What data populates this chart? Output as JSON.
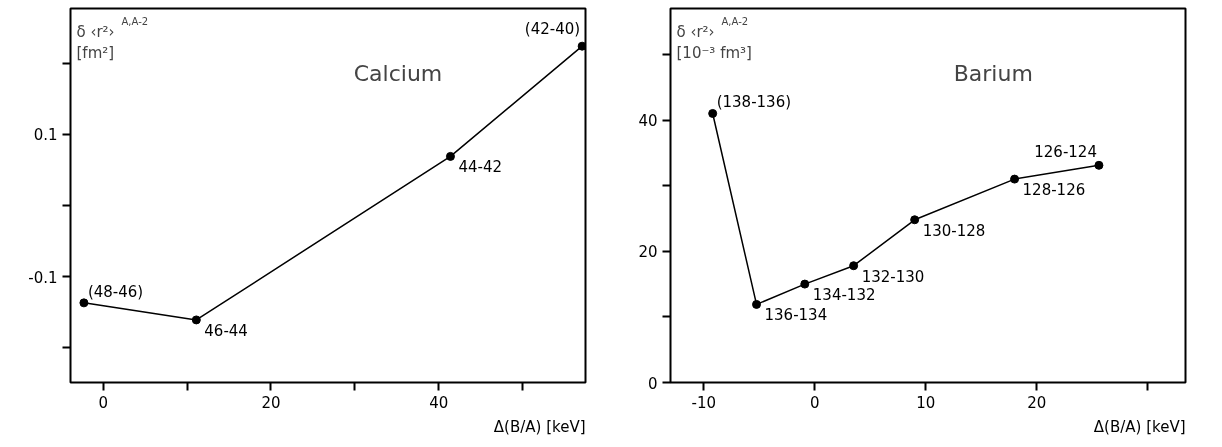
{
  "chart_data": [
    {
      "type": "line",
      "title": "Calcium",
      "ylabel": "δ ‹r²›$^{A,A-2}$\n[fm²]",
      "xlabel": "Δ(B/A) [keV]",
      "x": [
        -2.3,
        11.1,
        41.4,
        57.1
      ],
      "series": [
        {
          "color": "#000000",
          "values": [
            -0.137,
            -0.161,
            0.069,
            0.224
          ]
        }
      ],
      "annotations": [
        {
          "text": "(48-46)",
          "x": -2.3,
          "y": -0.137
        },
        {
          "text": "46-44",
          "x": 11.1,
          "y": -0.161
        },
        {
          "text": "44-42",
          "x": 41.4,
          "y": 0.069
        },
        {
          "text": "(42-40)",
          "x": 57.1,
          "y": 0.224
        }
      ],
      "xlim": [
        -3.9,
        57.5
      ],
      "ylim": [
        -0.249,
        0.277
      ],
      "xticks": [
        0,
        {
          "value": 10,
          "label": null
        },
        20,
        {
          "value": 30,
          "label": null
        },
        40,
        {
          "value": 50,
          "label": null
        }
      ],
      "yticks": [
        {
          "value": -0.2,
          "label": null
        },
        -0.1,
        {
          "value": 0,
          "label": null
        },
        0.1,
        {
          "value": 0.2,
          "label": null
        }
      ],
      "marker": "circle",
      "line_style": "solid",
      "grid": false
    },
    {
      "type": "line",
      "title": "Barium",
      "ylabel": "δ ‹r²›$^{A,A-2}$\n[10⁻³ fm³]",
      "xlabel": "Δ(B/A) [keV]",
      "x": [
        -9.2,
        -5.25,
        -0.9,
        3.5,
        9.0,
        18.0,
        25.6
      ],
      "series": [
        {
          "color": "#000000",
          "values": [
            41.0,
            11.9,
            15.0,
            17.8,
            24.8,
            31.0,
            33.1
          ]
        }
      ],
      "annotations": [
        {
          "text": "(138-136)",
          "x": -9.2,
          "y": 41.0
        },
        {
          "text": "136-134",
          "x": -5.25,
          "y": 11.9
        },
        {
          "text": "134-132",
          "x": -0.9,
          "y": 15.0
        },
        {
          "text": "132-130",
          "x": 3.5,
          "y": 17.8
        },
        {
          "text": "130-128",
          "x": 9.0,
          "y": 24.8
        },
        {
          "text": "128-126",
          "x": 18.0,
          "y": 31.0
        },
        {
          "text": "126-124",
          "x": 25.6,
          "y": 33.1
        }
      ],
      "xlim": [
        -13,
        33.4
      ],
      "ylim": [
        0,
        57
      ],
      "xticks": [
        -10,
        0,
        10,
        20,
        {
          "value": 30,
          "label": null
        }
      ],
      "yticks": [
        0,
        {
          "value": 10,
          "label": null
        },
        20,
        {
          "value": 30,
          "label": null
        },
        40,
        {
          "value": 50,
          "label": null
        }
      ],
      "marker": "circle",
      "line_style": "solid",
      "grid": false
    }
  ]
}
